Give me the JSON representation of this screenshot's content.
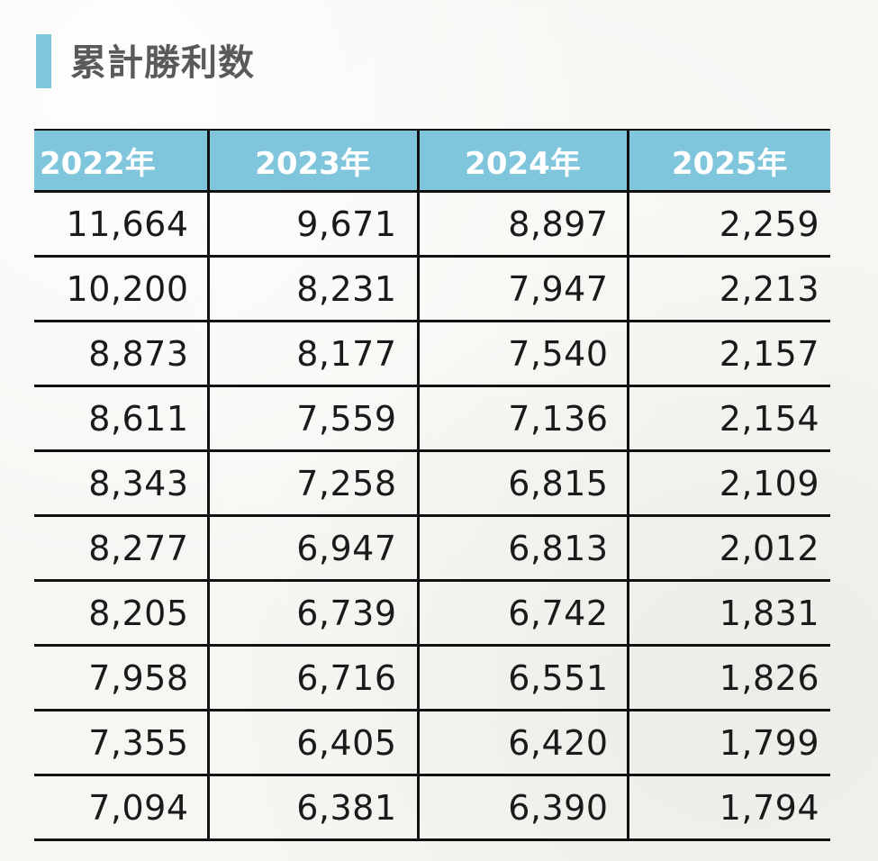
{
  "title": "累計勝利数",
  "columns": [
    "2022年",
    "2023年",
    "2024年",
    "2025年"
  ],
  "rows": [
    [
      "11,664",
      "9,671",
      "8,897",
      "2,259"
    ],
    [
      "10,200",
      "8,231",
      "7,947",
      "2,213"
    ],
    [
      "8,873",
      "8,177",
      "7,540",
      "2,157"
    ],
    [
      "8,611",
      "7,559",
      "7,136",
      "2,154"
    ],
    [
      "8,343",
      "7,258",
      "6,815",
      "2,109"
    ],
    [
      "8,277",
      "6,947",
      "6,813",
      "2,012"
    ],
    [
      "8,205",
      "6,739",
      "6,742",
      "1,831"
    ],
    [
      "7,958",
      "6,716",
      "6,551",
      "1,826"
    ],
    [
      "7,355",
      "6,405",
      "6,420",
      "1,799"
    ],
    [
      "7,094",
      "6,381",
      "6,390",
      "1,794"
    ]
  ],
  "colors": {
    "accent": "#7fc5dc",
    "header_text": "#ffffff",
    "title_text": "#5a5a5a",
    "grid": "#111111"
  }
}
